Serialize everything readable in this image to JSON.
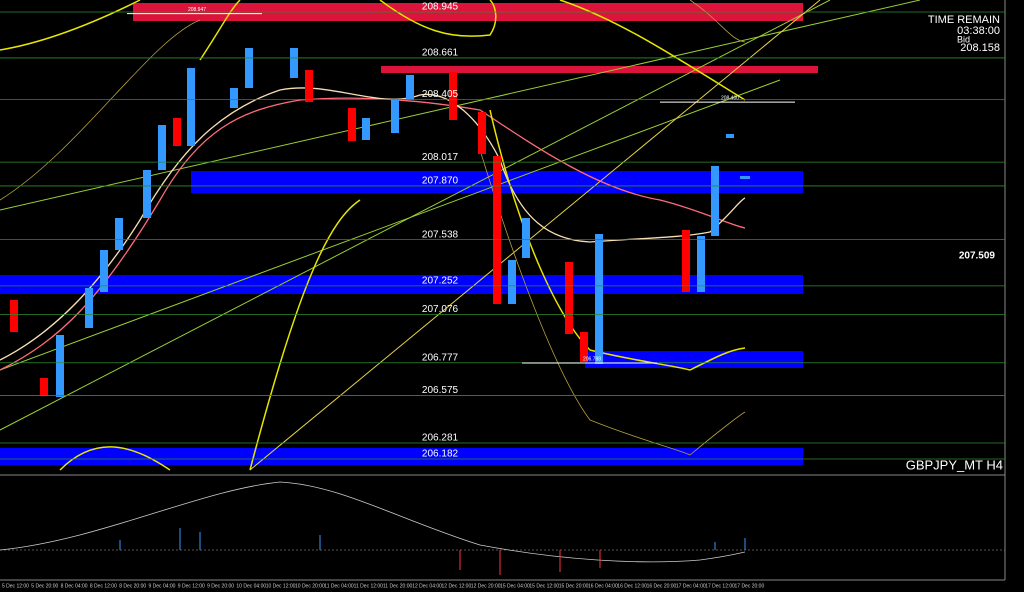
{
  "info": {
    "time_remain": "TIME REMAIN",
    "countdown": "03:38:00",
    "bid_label": "Bid",
    "bid": "208.158"
  },
  "symbol": "GBPJPY_MT H4",
  "current_level": "207.509",
  "levels": [
    {
      "value": 208.945,
      "label": "208.945"
    },
    {
      "value": 208.661,
      "label": "208.661"
    },
    {
      "value": 208.405,
      "label": "208.405"
    },
    {
      "value": 208.017,
      "label": "208.017"
    },
    {
      "value": 207.87,
      "label": "207.870"
    },
    {
      "value": 207.538,
      "label": "207.538"
    },
    {
      "value": 207.252,
      "label": "207.252"
    },
    {
      "value": 207.076,
      "label": "207.076"
    },
    {
      "value": 206.777,
      "label": "206.777"
    },
    {
      "value": 206.575,
      "label": "206.575"
    },
    {
      "value": 206.281,
      "label": "206.281"
    },
    {
      "value": 206.182,
      "label": "206.182"
    }
  ],
  "marks": [
    {
      "value": 208.947,
      "label": "208.947"
    },
    {
      "value": 208.4,
      "label": "208.400"
    },
    {
      "value": 206.788,
      "label": "206.788"
    }
  ],
  "time_labels": [
    "5 Dec 12:00",
    "5 Dec 20:00",
    "8 Dec 04:00",
    "8 Dec 12:00",
    "8 Dec 20:00",
    "9 Dec 04:00",
    "9 Dec 12:00",
    "9 Dec 20:00",
    "10 Dec 04:00",
    "10 Dec 12:00",
    "10 Dec 20:00",
    "11 Dec 04:00",
    "11 Dec 12:00",
    "11 Dec 20:00",
    "12 Dec 04:00",
    "12 Dec 12:00",
    "12 Dec 20:00",
    "15 Dec 04:00",
    "15 Dec 12:00",
    "15 Dec 20:00",
    "16 Dec 04:00",
    "16 Dec 12:00",
    "16 Dec 20:00",
    "17 Dec 04:00",
    "17 Dec 12:00",
    "17 Dec 20:00"
  ]
}
